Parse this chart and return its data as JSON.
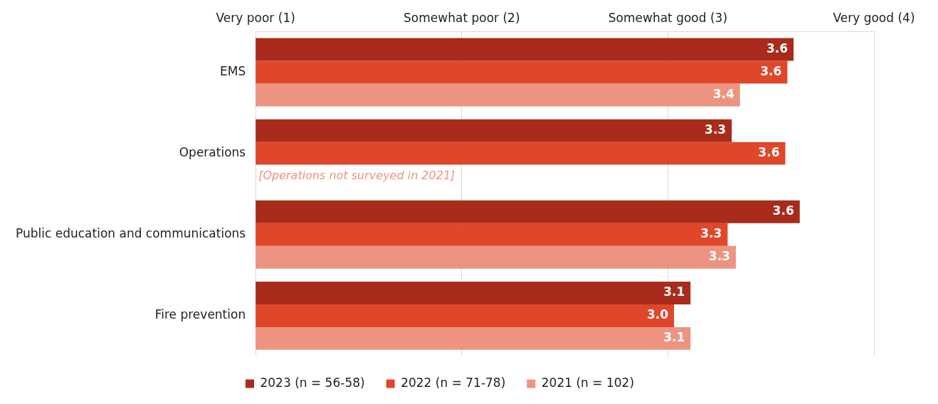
{
  "chart_data": {
    "type": "bar",
    "orientation": "horizontal",
    "categories": [
      "EMS",
      "Operations",
      "Public education and communications",
      "Fire prevention"
    ],
    "series": [
      {
        "name": "2023 (n = 56-58)",
        "color": "#a82b1b",
        "values": [
          3.61,
          3.31,
          3.64,
          3.11
        ],
        "value_labels": [
          "3.6",
          "3.3",
          "3.6",
          "3.1"
        ]
      },
      {
        "name": "2022 (n = 71-78)",
        "color": "#e0472a",
        "values": [
          3.58,
          3.57,
          3.29,
          3.03
        ],
        "value_labels": [
          "3.6",
          "3.6",
          "3.3",
          "3.0"
        ]
      },
      {
        "name": "2021 (n = 102)",
        "color": "#ec9480",
        "values": [
          3.35,
          null,
          3.33,
          3.11
        ],
        "value_labels": [
          "3.4",
          null,
          "3.3",
          "3.1"
        ]
      }
    ],
    "xlim": [
      1,
      4
    ],
    "xticks": [
      {
        "value": 1,
        "label": "Very poor (1)"
      },
      {
        "value": 2,
        "label": "Somewhat poor (2)"
      },
      {
        "value": 3,
        "label": "Somewhat good (3)"
      },
      {
        "value": 4,
        "label": "Very good (4)"
      }
    ],
    "grid": "x",
    "legend": "bottom",
    "annotations": [
      "[Operations not surveyed in 2021]"
    ]
  }
}
